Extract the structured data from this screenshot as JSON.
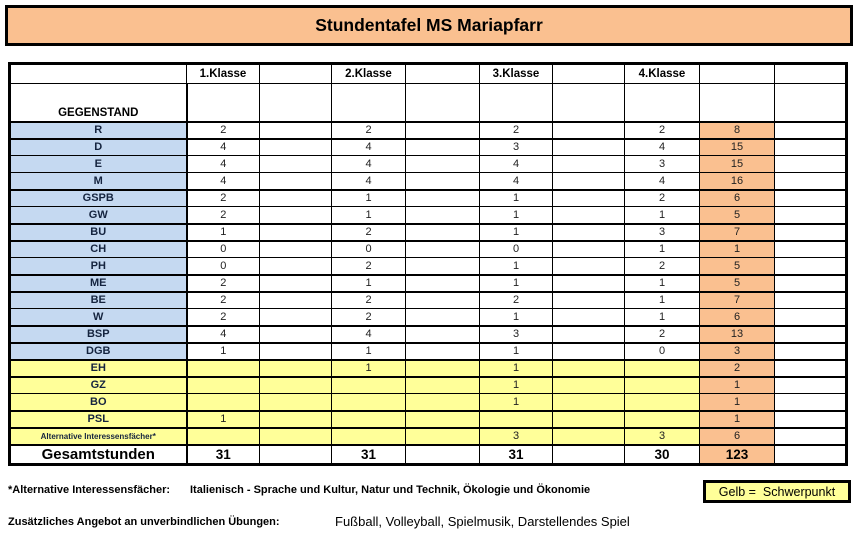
{
  "title": "Stundentafel MS Mariapfarr",
  "colors": {
    "accent_bg": "#FAC090",
    "subject_bg": "#C5D9F1",
    "highlight_bg": "#FFFF99"
  },
  "table": {
    "class_headers": [
      "1.Klasse",
      "2.Klasse",
      "3.Klasse",
      "4.Klasse"
    ],
    "subject_header": "GEGENSTAND",
    "rows": [
      {
        "subject": "R",
        "type": "blue",
        "values": [
          "2",
          "2",
          "2",
          "2"
        ],
        "total": "8",
        "group_end": true
      },
      {
        "subject": "D",
        "type": "blue",
        "values": [
          "4",
          "4",
          "3",
          "4"
        ],
        "total": "15",
        "group_end": false
      },
      {
        "subject": "E",
        "type": "blue",
        "values": [
          "4",
          "4",
          "4",
          "3"
        ],
        "total": "15",
        "group_end": false
      },
      {
        "subject": "M",
        "type": "blue",
        "values": [
          "4",
          "4",
          "4",
          "4"
        ],
        "total": "16",
        "group_end": true
      },
      {
        "subject": "GSPB",
        "type": "blue",
        "values": [
          "2",
          "1",
          "1",
          "2"
        ],
        "total": "6",
        "group_end": false
      },
      {
        "subject": "GW",
        "type": "blue",
        "values": [
          "2",
          "1",
          "1",
          "1"
        ],
        "total": "5",
        "group_end": true
      },
      {
        "subject": "BU",
        "type": "blue",
        "values": [
          "1",
          "2",
          "1",
          "3"
        ],
        "total": "7",
        "group_end": true
      },
      {
        "subject": "CH",
        "type": "blue",
        "values": [
          "0",
          "0",
          "0",
          "1"
        ],
        "total": "1",
        "group_end": false
      },
      {
        "subject": "PH",
        "type": "blue",
        "values": [
          "0",
          "2",
          "1",
          "2"
        ],
        "total": "5",
        "group_end": true
      },
      {
        "subject": "ME",
        "type": "blue",
        "values": [
          "2",
          "1",
          "1",
          "1"
        ],
        "total": "5",
        "group_end": true
      },
      {
        "subject": "BE",
        "type": "blue",
        "values": [
          "2",
          "2",
          "2",
          "1"
        ],
        "total": "7",
        "group_end": false
      },
      {
        "subject": "W",
        "type": "blue",
        "values": [
          "2",
          "2",
          "1",
          "1"
        ],
        "total": "6",
        "group_end": true
      },
      {
        "subject": "BSP",
        "type": "blue",
        "values": [
          "4",
          "4",
          "3",
          "2"
        ],
        "total": "13",
        "group_end": true
      },
      {
        "subject": "DGB",
        "type": "blue",
        "values": [
          "1",
          "1",
          "1",
          "0"
        ],
        "total": "3",
        "group_end": true
      },
      {
        "subject": "EH",
        "type": "yellow",
        "values": [
          "",
          "1",
          "1",
          ""
        ],
        "total": "2",
        "group_end": true
      },
      {
        "subject": "GZ",
        "type": "yellow",
        "values": [
          "",
          "",
          "1",
          ""
        ],
        "total": "1",
        "group_end": false
      },
      {
        "subject": "BO",
        "type": "yellow",
        "values": [
          "",
          "",
          "1",
          ""
        ],
        "total": "1",
        "group_end": true
      },
      {
        "subject": "PSL",
        "type": "yellow",
        "values": [
          "1",
          "",
          "",
          ""
        ],
        "total": "1",
        "group_end": true
      },
      {
        "subject": "Alternative Interessensfächer*",
        "type": "yellow",
        "small": true,
        "values": [
          "",
          "",
          "3",
          "3"
        ],
        "total": "6",
        "group_end": true
      }
    ],
    "total_row": {
      "label": "Gesamtstunden",
      "values": [
        "31",
        "31",
        "31",
        "30"
      ],
      "total": "123"
    }
  },
  "footnotes": {
    "alt_label": "*Alternative Interessensfächer:",
    "alt_value": "Italienisch - Sprache und Kultur, Natur und Technik, Ökologie und Ökonomie",
    "extra_label": "Zusätzliches Angebot an unverbindlichen Übungen:",
    "extra_value": "Fußball, Volleyball, Spielmusik, Darstellendes Spiel",
    "legend": "Gelb =  Schwerpunkt"
  }
}
